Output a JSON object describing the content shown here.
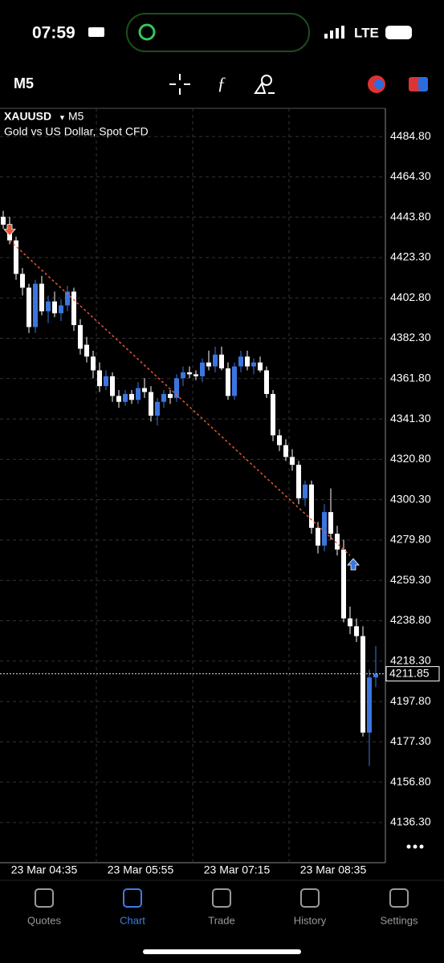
{
  "status_bar": {
    "time": "07:59",
    "network": "LTE"
  },
  "toolbar": {
    "timeframe": "M5"
  },
  "chart_data": {
    "type": "candlestick",
    "symbol": "XAUUSD",
    "timeframe": "M5",
    "description": "Gold vs US Dollar, Spot CFD",
    "open": [
      4444,
      4440,
      4432,
      4415,
      4408,
      4388,
      4410,
      4396,
      4401,
      4395,
      4399,
      4406,
      4389,
      4379,
      4373,
      4366,
      4358,
      4363,
      4353,
      4350,
      4354,
      4351,
      4357,
      4355,
      4343,
      4350,
      4354,
      4352,
      4362,
      4365,
      4364,
      4363,
      4370,
      4368,
      4374,
      4367,
      4353,
      4368,
      4373,
      4368,
      4370,
      4366,
      4354,
      4333,
      4328,
      4322,
      4318,
      4301,
      4308,
      4286,
      4277,
      4294,
      4283,
      4275,
      4240,
      4236,
      4231,
      4182,
      4210
    ],
    "high": [
      4447,
      4444,
      4434,
      4418,
      4410,
      4412,
      4414,
      4404,
      4406,
      4402,
      4409,
      4408,
      4392,
      4383,
      4376,
      4370,
      4366,
      4365,
      4356,
      4356,
      4356,
      4360,
      4362,
      4358,
      4352,
      4356,
      4356,
      4364,
      4368,
      4368,
      4366,
      4372,
      4376,
      4378,
      4378,
      4370,
      4370,
      4376,
      4376,
      4372,
      4373,
      4368,
      4356,
      4336,
      4331,
      4326,
      4320,
      4310,
      4310,
      4289,
      4298,
      4306,
      4287,
      4280,
      4246,
      4240,
      4236,
      4214,
      4226
    ],
    "low": [
      4438,
      4430,
      4412,
      4404,
      4385,
      4385,
      4394,
      4390,
      4393,
      4391,
      4396,
      4386,
      4374,
      4370,
      4362,
      4355,
      4356,
      4350,
      4347,
      4348,
      4349,
      4349,
      4352,
      4340,
      4338,
      4347,
      4349,
      4350,
      4358,
      4362,
      4361,
      4360,
      4366,
      4365,
      4366,
      4351,
      4351,
      4365,
      4366,
      4364,
      4365,
      4352,
      4330,
      4325,
      4320,
      4315,
      4298,
      4297,
      4283,
      4273,
      4274,
      4280,
      4272,
      4238,
      4232,
      4228,
      4180,
      4165,
      4205
    ],
    "close": [
      4440,
      4432,
      4415,
      4408,
      4388,
      4410,
      4396,
      4401,
      4395,
      4399,
      4406,
      4389,
      4377,
      4373,
      4366,
      4358,
      4363,
      4353,
      4350,
      4354,
      4351,
      4357,
      4355,
      4343,
      4350,
      4354,
      4352,
      4362,
      4365,
      4364,
      4363,
      4370,
      4368,
      4374,
      4367,
      4353,
      4368,
      4373,
      4368,
      4370,
      4366,
      4354,
      4333,
      4328,
      4322,
      4318,
      4301,
      4308,
      4286,
      4277,
      4294,
      4283,
      4275,
      4240,
      4236,
      4231,
      4182,
      4210,
      4211.85
    ],
    "up_color": "#3b76e0",
    "down_color": "#ffffff",
    "ylim": [
      4115.9,
      4499.1
    ],
    "yticks": [
      {
        "value": 4484.8,
        "label": "4484.80"
      },
      {
        "value": 4464.3,
        "label": "4464.30"
      },
      {
        "value": 4443.8,
        "label": "4443.80"
      },
      {
        "value": 4423.3,
        "label": "4423.30"
      },
      {
        "value": 4402.8,
        "label": "4402.80"
      },
      {
        "value": 4382.3,
        "label": "4382.30"
      },
      {
        "value": 4361.8,
        "label": "4361.80"
      },
      {
        "value": 4341.3,
        "label": "4341.30"
      },
      {
        "value": 4320.8,
        "label": "4320.80"
      },
      {
        "value": 4300.3,
        "label": "4300.30"
      },
      {
        "value": 4279.8,
        "label": "4279.80"
      },
      {
        "value": 4259.3,
        "label": "4259.30"
      },
      {
        "value": 4238.8,
        "label": "4238.80"
      },
      {
        "value": 4218.3,
        "label": "4218.30"
      },
      {
        "value": 4197.8,
        "label": "4197.80"
      },
      {
        "value": 4177.3,
        "label": "4177.30"
      },
      {
        "value": 4156.8,
        "label": "4156.80"
      },
      {
        "value": 4136.3,
        "label": "4136.30"
      }
    ],
    "x_tick_labels": [
      "23 Mar 04:35",
      "23 Mar 05:55",
      "23 Mar 07:15",
      "23 Mar 08:35"
    ],
    "trend_line": [
      4432,
      4272
    ],
    "grid": true
  },
  "tab_bar": {
    "tabs": [
      "Quotes",
      "Chart",
      "Trade",
      "History",
      "Settings"
    ],
    "active": 1
  }
}
